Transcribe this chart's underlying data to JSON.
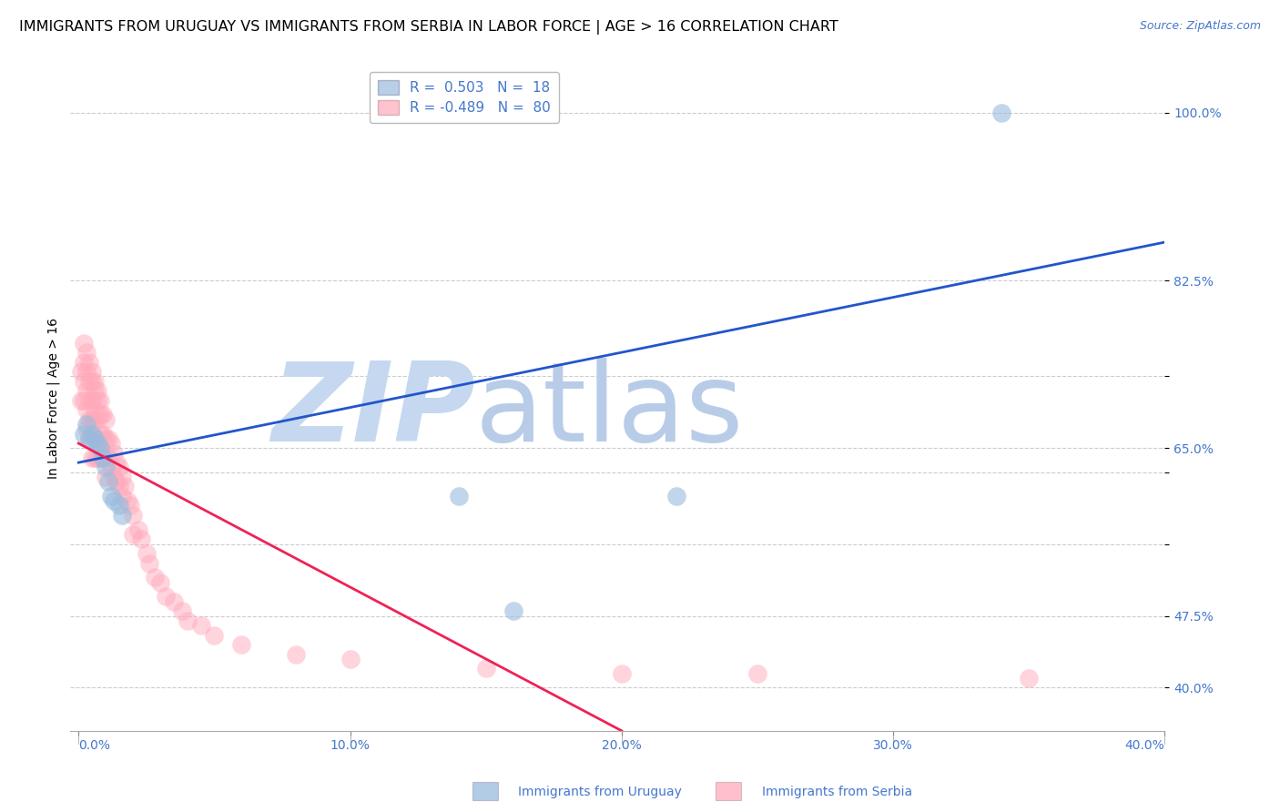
{
  "title": "IMMIGRANTS FROM URUGUAY VS IMMIGRANTS FROM SERBIA IN LABOR FORCE | AGE > 16 CORRELATION CHART",
  "source": "Source: ZipAtlas.com",
  "xlim": [
    -0.003,
    0.4
  ],
  "ylim": [
    0.355,
    1.05
  ],
  "ytick_vals": [
    0.4,
    0.475,
    0.55,
    0.625,
    0.65,
    0.725,
    0.825,
    1.0
  ],
  "ytick_labels": [
    "40.0%",
    "47.5%",
    "",
    "",
    "65.0%",
    "",
    "82.5%",
    "100.0%"
  ],
  "xtick_vals": [
    0.0,
    0.1,
    0.2,
    0.3,
    0.4
  ],
  "xtick_labels": [
    "0.0%",
    "10.0%",
    "20.0%",
    "30.0%",
    "40.0%"
  ],
  "legend_uruguay_r": "R =  0.503",
  "legend_uruguay_n": "N =  18",
  "legend_serbia_r": "R = -0.489",
  "legend_serbia_n": "N =  80",
  "uruguay_color": "#99bbdd",
  "serbia_color": "#ffaabb",
  "trendline_uruguay_color": "#2255cc",
  "trendline_serbia_color": "#ee2255",
  "watermark_zip_color": "#c5d8f0",
  "watermark_atlas_color": "#b8cce8",
  "watermark_text_zip": "ZIP",
  "watermark_text_atlas": "atlas",
  "grid_color": "#cccccc",
  "bg_color": "#ffffff",
  "title_fontsize": 11.5,
  "axis_label_fontsize": 10,
  "tick_fontsize": 10,
  "legend_fontsize": 11,
  "source_fontsize": 9,
  "tick_color": "#4477cc",
  "uruguay_trendline_x0": 0.0,
  "uruguay_trendline_y0": 0.635,
  "uruguay_trendline_x1": 0.4,
  "uruguay_trendline_y1": 0.865,
  "serbia_trendline_x0": 0.0,
  "serbia_trendline_y0": 0.655,
  "serbia_trendline_x1": 0.2,
  "serbia_trendline_y1": 0.355,
  "uruguay_x": [
    0.002,
    0.003,
    0.004,
    0.005,
    0.006,
    0.007,
    0.008,
    0.009,
    0.01,
    0.011,
    0.012,
    0.013,
    0.015,
    0.016,
    0.14,
    0.16,
    0.22,
    0.34
  ],
  "uruguay_y": [
    0.665,
    0.675,
    0.66,
    0.665,
    0.66,
    0.655,
    0.65,
    0.64,
    0.63,
    0.615,
    0.6,
    0.595,
    0.59,
    0.58,
    0.6,
    0.48,
    0.6,
    1.0
  ],
  "serbia_x": [
    0.001,
    0.001,
    0.002,
    0.002,
    0.002,
    0.002,
    0.003,
    0.003,
    0.003,
    0.003,
    0.003,
    0.004,
    0.004,
    0.004,
    0.004,
    0.004,
    0.005,
    0.005,
    0.005,
    0.005,
    0.005,
    0.005,
    0.006,
    0.006,
    0.006,
    0.006,
    0.006,
    0.006,
    0.007,
    0.007,
    0.007,
    0.007,
    0.007,
    0.008,
    0.008,
    0.008,
    0.008,
    0.009,
    0.009,
    0.009,
    0.01,
    0.01,
    0.01,
    0.01,
    0.011,
    0.011,
    0.012,
    0.012,
    0.013,
    0.013,
    0.014,
    0.014,
    0.015,
    0.015,
    0.016,
    0.016,
    0.017,
    0.018,
    0.019,
    0.02,
    0.02,
    0.022,
    0.023,
    0.025,
    0.026,
    0.028,
    0.03,
    0.032,
    0.035,
    0.038,
    0.04,
    0.045,
    0.05,
    0.06,
    0.08,
    0.1,
    0.15,
    0.2,
    0.25,
    0.35
  ],
  "serbia_y": [
    0.73,
    0.7,
    0.76,
    0.74,
    0.72,
    0.7,
    0.75,
    0.73,
    0.71,
    0.69,
    0.67,
    0.74,
    0.72,
    0.7,
    0.68,
    0.66,
    0.73,
    0.72,
    0.7,
    0.68,
    0.66,
    0.64,
    0.72,
    0.71,
    0.69,
    0.68,
    0.66,
    0.64,
    0.71,
    0.7,
    0.68,
    0.66,
    0.64,
    0.7,
    0.685,
    0.665,
    0.64,
    0.685,
    0.665,
    0.64,
    0.68,
    0.66,
    0.645,
    0.62,
    0.66,
    0.64,
    0.655,
    0.63,
    0.645,
    0.62,
    0.635,
    0.615,
    0.63,
    0.61,
    0.62,
    0.6,
    0.61,
    0.595,
    0.59,
    0.58,
    0.56,
    0.565,
    0.555,
    0.54,
    0.53,
    0.515,
    0.51,
    0.495,
    0.49,
    0.48,
    0.47,
    0.465,
    0.455,
    0.445,
    0.435,
    0.43,
    0.42,
    0.415,
    0.415,
    0.41
  ]
}
